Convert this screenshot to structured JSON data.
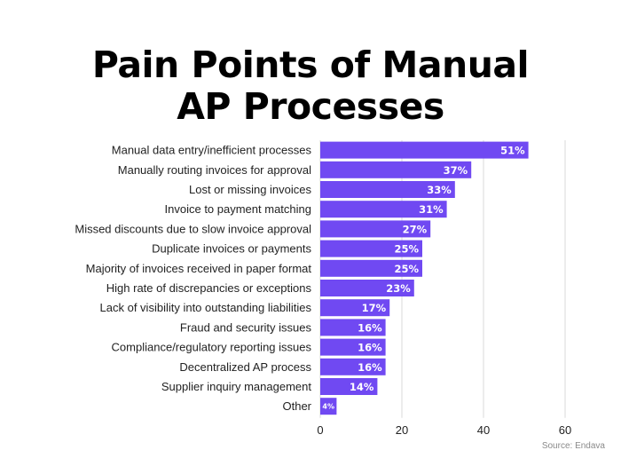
{
  "title_lines": [
    "Pain Points of Manual",
    "AP Processes"
  ],
  "source": "Source: Endava",
  "colors": {
    "bar": "#7049f2",
    "label": "#ffffff",
    "grid": "#d9d9d9",
    "text": "#222222"
  },
  "chart_data": {
    "type": "bar",
    "orientation": "horizontal",
    "title": "Pain Points of Manual AP Processes",
    "categories": [
      "Manual data entry/inefficient processes",
      "Manually routing invoices for approval",
      "Lost or missing invoices",
      "Invoice to payment matching",
      "Missed discounts due to slow invoice approval",
      "Duplicate invoices or payments",
      "Majority of invoices received in paper format",
      "High rate of discrepancies or exceptions",
      "Lack of visibility into outstanding liabilities",
      "Fraud and security issues",
      "Compliance/regulatory reporting issues",
      "Decentralized AP process",
      "Supplier inquiry management",
      "Other"
    ],
    "values": [
      51,
      37,
      33,
      31,
      27,
      25,
      25,
      23,
      17,
      16,
      16,
      16,
      14,
      4
    ],
    "value_labels": [
      "51%",
      "37%",
      "33%",
      "31%",
      "27%",
      "25%",
      "25%",
      "23%",
      "17%",
      "16%",
      "16%",
      "16%",
      "14%",
      "4%"
    ],
    "xlim": [
      0,
      60
    ],
    "xticks": [
      0,
      20,
      40,
      60
    ],
    "xticklabels": [
      "0",
      "20",
      "40",
      "60"
    ],
    "grid": true,
    "legend": "none"
  }
}
